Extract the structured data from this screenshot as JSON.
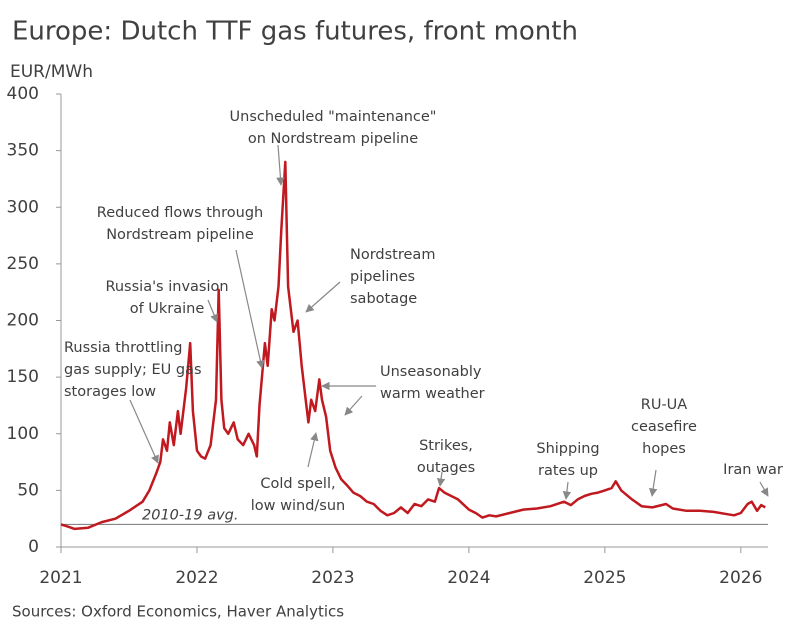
{
  "chart_data": {
    "type": "line",
    "title": "Europe: Dutch TTF gas futures, front month",
    "y_label": "EUR/MWh",
    "source": "Sources: Oxford Economics, Haver Analytics",
    "color": "#c0191f",
    "reference": {
      "label": "2010-19 avg.",
      "value": 20
    },
    "xlim": [
      2021,
      2026.2
    ],
    "xticks": [
      2021,
      2022,
      2023,
      2024,
      2025,
      2026
    ],
    "ylim": [
      0,
      400
    ],
    "yticks": [
      0,
      50,
      100,
      150,
      200,
      250,
      300,
      350,
      400
    ],
    "x": [
      2021.0,
      2021.05,
      2021.1,
      2021.2,
      2021.3,
      2021.4,
      2021.5,
      2021.6,
      2021.65,
      2021.7,
      2021.73,
      2021.75,
      2021.78,
      2021.8,
      2021.83,
      2021.86,
      2021.88,
      2021.92,
      2021.95,
      2021.97,
      2022.0,
      2022.03,
      2022.06,
      2022.1,
      2022.14,
      2022.16,
      2022.18,
      2022.2,
      2022.23,
      2022.27,
      2022.3,
      2022.34,
      2022.38,
      2022.42,
      2022.44,
      2022.46,
      2022.5,
      2022.52,
      2022.55,
      2022.57,
      2022.6,
      2022.62,
      2022.65,
      2022.67,
      2022.69,
      2022.71,
      2022.74,
      2022.77,
      2022.8,
      2022.82,
      2022.84,
      2022.87,
      2022.9,
      2022.92,
      2022.95,
      2022.98,
      2023.02,
      2023.06,
      2023.1,
      2023.15,
      2023.2,
      2023.25,
      2023.3,
      2023.35,
      2023.4,
      2023.45,
      2023.5,
      2023.55,
      2023.6,
      2023.65,
      2023.7,
      2023.75,
      2023.78,
      2023.82,
      2023.87,
      2023.92,
      2024.0,
      2024.05,
      2024.1,
      2024.15,
      2024.2,
      2024.3,
      2024.4,
      2024.5,
      2024.6,
      2024.7,
      2024.75,
      2024.8,
      2024.85,
      2024.9,
      2024.95,
      2025.0,
      2025.05,
      2025.08,
      2025.12,
      2025.2,
      2025.27,
      2025.35,
      2025.45,
      2025.5,
      2025.6,
      2025.7,
      2025.8,
      2025.9,
      2025.95,
      2026.0,
      2026.05,
      2026.08,
      2026.12,
      2026.15,
      2026.18
    ],
    "values": [
      20,
      18,
      16,
      17,
      22,
      25,
      32,
      40,
      50,
      65,
      75,
      95,
      85,
      110,
      90,
      120,
      100,
      140,
      180,
      120,
      85,
      80,
      78,
      90,
      130,
      227,
      130,
      105,
      100,
      110,
      95,
      90,
      100,
      90,
      80,
      125,
      180,
      160,
      210,
      200,
      230,
      280,
      340,
      230,
      210,
      190,
      200,
      160,
      130,
      110,
      130,
      120,
      148,
      130,
      115,
      85,
      70,
      60,
      55,
      48,
      45,
      40,
      38,
      32,
      28,
      30,
      35,
      30,
      38,
      36,
      42,
      40,
      52,
      48,
      45,
      42,
      33,
      30,
      26,
      28,
      27,
      30,
      33,
      34,
      36,
      40,
      37,
      42,
      45,
      47,
      48,
      50,
      52,
      58,
      50,
      42,
      36,
      35,
      38,
      34,
      32,
      32,
      31,
      29,
      28,
      30,
      38,
      40,
      32,
      37,
      35
    ],
    "annotations": [
      {
        "lines": [
          "Russia throttling",
          "gas supply; EU gas",
          "storages low"
        ]
      },
      {
        "lines": [
          "Russia's invasion",
          "of Ukraine"
        ]
      },
      {
        "lines": [
          "Reduced flows through",
          "Nordstream pipeline"
        ]
      },
      {
        "lines": [
          "Unscheduled \"maintenance\"",
          "on Nordstream pipeline"
        ]
      },
      {
        "lines": [
          "Nordstream",
          "pipelines",
          "sabotage"
        ]
      },
      {
        "lines": [
          "Unseasonably",
          "warm weather"
        ]
      },
      {
        "lines": [
          "Cold spell,",
          "low wind/sun"
        ]
      },
      {
        "lines": [
          "Strikes,",
          "outages"
        ]
      },
      {
        "lines": [
          "Shipping",
          "rates up"
        ]
      },
      {
        "lines": [
          "RU-UA",
          "ceasefire",
          "hopes"
        ]
      },
      {
        "lines": [
          "Iran war"
        ]
      }
    ]
  }
}
